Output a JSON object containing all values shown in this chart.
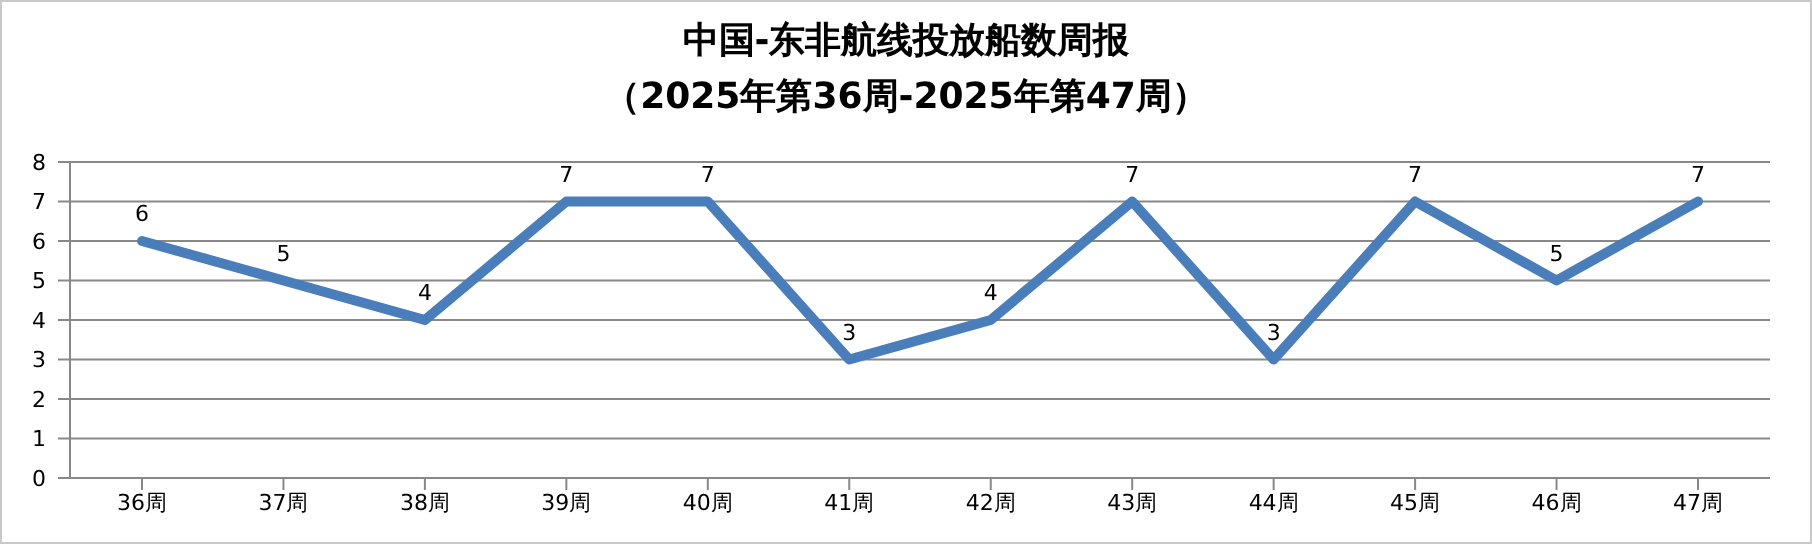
{
  "chart_data": {
    "type": "line",
    "title": "中国-东非航线投放船数周报",
    "subtitle": "（2025年第36周-2025年第47周）",
    "categories": [
      "36周",
      "37周",
      "38周",
      "39周",
      "40周",
      "41周",
      "42周",
      "43周",
      "44周",
      "45周",
      "46周",
      "47周"
    ],
    "series": [
      {
        "color": "#4a7ebb",
        "values": [
          6,
          5,
          4,
          7,
          7,
          3,
          4,
          7,
          3,
          7,
          5,
          7
        ]
      }
    ],
    "ylim": [
      0,
      8
    ],
    "yticks": [
      0,
      1,
      2,
      3,
      4,
      5,
      6,
      7,
      8
    ],
    "grid": "y",
    "legend": false,
    "marker": "none",
    "line_style": "solid",
    "data_labels": true
  }
}
